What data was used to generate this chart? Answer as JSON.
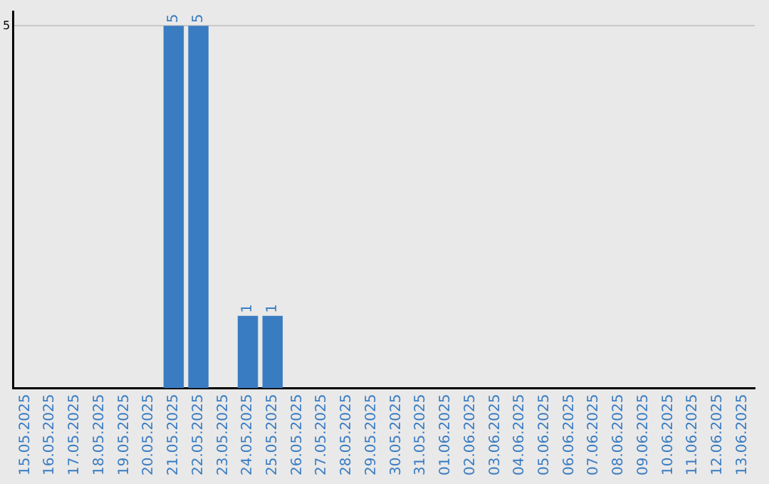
{
  "chart_data": {
    "type": "bar",
    "categories": [
      "15.05.2025",
      "16.05.2025",
      "17.05.2025",
      "18.05.2025",
      "19.05.2025",
      "20.05.2025",
      "21.05.2025",
      "22.05.2025",
      "23.05.2025",
      "24.05.2025",
      "25.05.2025",
      "26.05.2025",
      "27.05.2025",
      "28.05.2025",
      "29.05.2025",
      "30.05.2025",
      "31.05.2025",
      "01.06.2025",
      "02.06.2025",
      "03.06.2025",
      "04.06.2025",
      "05.06.2025",
      "06.06.2025",
      "07.06.2025",
      "08.06.2025",
      "09.06.2025",
      "10.06.2025",
      "11.06.2025",
      "12.06.2025",
      "13.06.2025"
    ],
    "values": [
      0,
      0,
      0,
      0,
      0,
      0,
      5,
      5,
      0,
      1,
      1,
      0,
      0,
      0,
      0,
      0,
      0,
      0,
      0,
      0,
      0,
      0,
      0,
      0,
      0,
      0,
      0,
      0,
      0,
      0
    ],
    "value_labels": [
      null,
      null,
      null,
      null,
      null,
      null,
      "5",
      "5",
      null,
      "1",
      "1",
      null,
      null,
      null,
      null,
      null,
      null,
      null,
      null,
      null,
      null,
      null,
      null,
      null,
      null,
      null,
      null,
      null,
      null,
      null
    ],
    "color": "#3a7cc1",
    "ylim": [
      0,
      5.2
    ],
    "yticks": [
      5
    ],
    "grid": "y",
    "legend": false
  }
}
